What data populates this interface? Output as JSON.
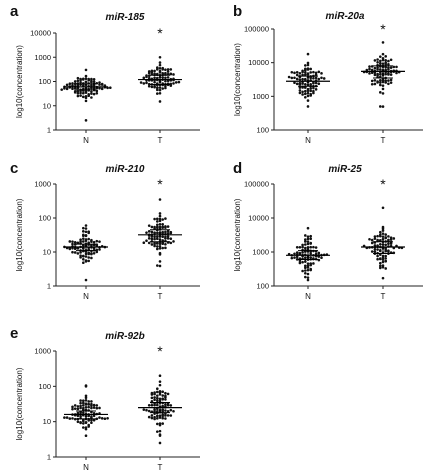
{
  "chart_data": [
    {
      "type": "scatter",
      "panel_label": "a",
      "title": "miR-185",
      "ylabel": "log10(concentration)",
      "ylog": true,
      "ylim": [
        1,
        10000
      ],
      "yticks": [
        "1",
        "10",
        "100",
        "1000",
        "10000"
      ],
      "categories": [
        "N",
        "T"
      ],
      "medians": [
        60,
        120
      ],
      "iqr": [
        [
          45,
          80
        ],
        [
          75,
          180
        ]
      ],
      "spread": [
        0.22,
        0.28
      ],
      "outliers": [
        [
          2.5,
          300
        ],
        [
          15,
          1000
        ]
      ],
      "significance": "*"
    },
    {
      "type": "scatter",
      "panel_label": "b",
      "title": "miR-20a",
      "ylabel": "log10(concentration)",
      "ylog": true,
      "ylim": [
        100,
        100000
      ],
      "yticks": [
        "100",
        "1000",
        "10000",
        "100000"
      ],
      "categories": [
        "N",
        "T"
      ],
      "medians": [
        2800,
        5500
      ],
      "iqr": [
        [
          2000,
          4000
        ],
        [
          3500,
          8000
        ]
      ],
      "spread": [
        0.25,
        0.3
      ],
      "outliers": [
        [
          500,
          18000
        ],
        [
          500,
          40000
        ]
      ],
      "significance": "*"
    },
    {
      "type": "scatter",
      "panel_label": "c",
      "title": "miR-210",
      "ylabel": "log10(concentration)",
      "ylog": true,
      "ylim": [
        1,
        1000
      ],
      "yticks": [
        "1",
        "10",
        "100",
        "1000"
      ],
      "categories": [
        "N",
        "T"
      ],
      "medians": [
        14,
        32
      ],
      "iqr": [
        [
          11,
          17
        ],
        [
          20,
          45
        ]
      ],
      "spread": [
        0.2,
        0.27
      ],
      "outliers": [
        [
          1.5,
          60
        ],
        [
          4,
          350
        ]
      ],
      "significance": "*"
    },
    {
      "type": "scatter",
      "panel_label": "d",
      "title": "miR-25",
      "ylabel": "log10(concentration)",
      "ylog": true,
      "ylim": [
        100,
        100000
      ],
      "yticks": [
        "100",
        "1000",
        "10000",
        "100000"
      ],
      "categories": [
        "N",
        "T"
      ],
      "medians": [
        800,
        1400
      ],
      "iqr": [
        [
          600,
          1100
        ],
        [
          900,
          2000
        ]
      ],
      "spread": [
        0.25,
        0.3
      ],
      "outliers": [
        [
          150,
          5000
        ],
        [
          170,
          20000
        ]
      ],
      "significance": "*"
    },
    {
      "type": "scatter",
      "panel_label": "e",
      "title": "miR-92b",
      "ylabel": "log10(concentration)",
      "ylog": true,
      "ylim": [
        1,
        1000
      ],
      "yticks": [
        "1",
        "10",
        "100",
        "1000"
      ],
      "categories": [
        "N",
        "T"
      ],
      "medians": [
        16,
        25
      ],
      "iqr": [
        [
          12,
          20
        ],
        [
          18,
          35
        ]
      ],
      "spread": [
        0.25,
        0.3
      ],
      "outliers": [
        [
          4,
          100
        ],
        [
          2.5,
          200
        ]
      ],
      "significance": "*"
    }
  ]
}
